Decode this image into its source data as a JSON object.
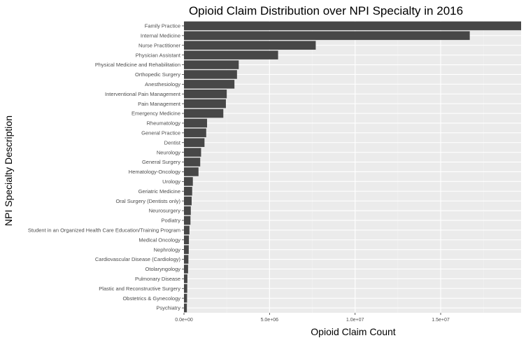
{
  "chart_data": {
    "type": "bar",
    "orientation": "horizontal",
    "title": "Opioid Claim Distribution over NPI Specialty in 2016",
    "xlabel": "Opioid Claim Count",
    "ylabel": "NPI Specialty Description",
    "xlim": [
      0,
      19700000
    ],
    "xticks": [
      0,
      5000000,
      10000000,
      15000000
    ],
    "xtick_labels": [
      "0.0e+00",
      "5.0e+06",
      "1.0e+07",
      "1.5e+07"
    ],
    "grid": true,
    "legend": "none",
    "colors": {
      "panel": "#ebebeb",
      "bar": "#474747",
      "grid_major": "#ffffff",
      "grid_minor": "#f4f4f4"
    },
    "categories": [
      "Family Practice",
      "Internal Medicine",
      "Nurse Practitioner",
      "Physician Assistant",
      "Physical Medicine and Rehabilitation",
      "Orthopedic Surgery",
      "Anesthesiology",
      "Interventional Pain Management",
      "Pain Management",
      "Emergency Medicine",
      "Rheumatology",
      "General Practice",
      "Dentist",
      "Neurology",
      "General Surgery",
      "Hematology-Oncology",
      "Urology",
      "Geriatric Medicine",
      "Oral Surgery (Dentists only)",
      "Neurosurgery",
      "Podiatry",
      "Student in an Organized Health Care Education/Training Program",
      "Medical Oncology",
      "Nephrology",
      "Cardiovascular Disease (Cardiology)",
      "Otolaryngology",
      "Pulmonary Disease",
      "Plastic and Reconstructive Surgery",
      "Obstetrics & Gynecology",
      "Psychiatry"
    ],
    "values": [
      19700000,
      16700000,
      7700000,
      5500000,
      3200000,
      3100000,
      2950000,
      2500000,
      2450000,
      2300000,
      1350000,
      1300000,
      1200000,
      1000000,
      950000,
      850000,
      520000,
      480000,
      450000,
      400000,
      380000,
      320000,
      290000,
      280000,
      260000,
      240000,
      200000,
      190000,
      180000,
      170000
    ]
  }
}
